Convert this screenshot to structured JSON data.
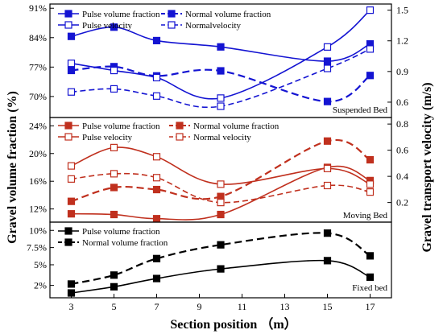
{
  "chart_data": {
    "type": "line",
    "x": [
      3,
      5,
      7,
      10,
      15,
      17
    ],
    "xticks": [
      3,
      5,
      7,
      9,
      11,
      13,
      15,
      17
    ],
    "xlabel": "Section position （m）",
    "ylabel_left": "Gravel volume fraction (%)",
    "ylabel_right": "Gravel transport velocity (m/s)",
    "xlim": [
      2,
      18
    ],
    "panels": [
      {
        "label": "Suspended Bed",
        "color": "#1414d2",
        "ylim_left": [
          65,
          92
        ],
        "left_ticks": [
          "91%",
          "84%",
          "77%",
          "70%"
        ],
        "left_tick_values": [
          91,
          84,
          77,
          70
        ],
        "ylim_right": [
          0.45,
          1.56
        ],
        "right_ticks": [
          "1.5",
          "1.2",
          "0.9",
          "0.6"
        ],
        "right_tick_values": [
          1.5,
          1.2,
          0.9,
          0.6
        ],
        "series": [
          {
            "name": "Pulse volume fraction",
            "axis": "left",
            "line": "solid",
            "marker": "filled",
            "values": [
              84.3,
              86.5,
              83.3,
              81.8,
              78.4,
              82.5
            ]
          },
          {
            "name": "Normal volume fraction",
            "axis": "left",
            "line": "dashed",
            "marker": "filled",
            "values": [
              76.2,
              77.1,
              74.9,
              76.1,
              68.8,
              75.0
            ]
          },
          {
            "name": "Pulse velocity",
            "axis": "right",
            "line": "solid",
            "marker": "open",
            "values": [
              0.98,
              0.91,
              0.84,
              0.64,
              1.14,
              1.5
            ]
          },
          {
            "name": "Normalvelocity",
            "axis": "right",
            "line": "dashed",
            "marker": "open",
            "values": [
              0.7,
              0.73,
              0.66,
              0.56,
              0.93,
              1.12
            ]
          }
        ]
      },
      {
        "label": "Moving Bed",
        "color": "#c0301e",
        "ylim_left": [
          10.1,
          25.2
        ],
        "left_ticks": [
          "24%",
          "20%",
          "16%",
          "12%"
        ],
        "left_tick_values": [
          24,
          20,
          16,
          12
        ],
        "ylim_right": [
          0.05,
          0.85
        ],
        "right_ticks": [
          "0.8",
          "0.6",
          "0.4",
          "0.2"
        ],
        "right_tick_values": [
          0.8,
          0.6,
          0.4,
          0.2
        ],
        "series": [
          {
            "name": "Pulse volume fraction",
            "axis": "left",
            "line": "solid",
            "marker": "filled",
            "values": [
              11.3,
              11.2,
              10.6,
              11.2,
              18.0,
              16.1
            ]
          },
          {
            "name": "Normal volume fraction",
            "axis": "left",
            "line": "dashed",
            "marker": "filled",
            "values": [
              13.1,
              15.1,
              14.8,
              13.8,
              21.8,
              19.1
            ]
          },
          {
            "name": "Pulse velocity",
            "axis": "right",
            "line": "solid",
            "marker": "open",
            "values": [
              0.48,
              0.62,
              0.55,
              0.34,
              0.46,
              0.34
            ]
          },
          {
            "name": "Normal velocity",
            "axis": "right",
            "line": "dashed",
            "marker": "open",
            "values": [
              0.38,
              0.42,
              0.39,
              0.2,
              0.33,
              0.28
            ]
          }
        ]
      },
      {
        "label": "Fixed bed",
        "color": "#000000",
        "ylim_left": [
          0.2,
          11.2
        ],
        "left_ticks": [
          "10%",
          "7.5%",
          "5%",
          "2%"
        ],
        "left_tick_values": [
          10,
          7.5,
          5,
          2
        ],
        "series": [
          {
            "name": "Pulse volume fraction",
            "axis": "left",
            "line": "solid",
            "marker": "filled",
            "values": [
              0.9,
              1.8,
              3.0,
              4.4,
              5.6,
              3.2
            ]
          },
          {
            "name": "Normal volume fraction",
            "axis": "left",
            "line": "dashed",
            "marker": "filled",
            "values": [
              2.2,
              3.5,
              5.9,
              7.9,
              9.6,
              6.3
            ]
          }
        ]
      }
    ]
  }
}
